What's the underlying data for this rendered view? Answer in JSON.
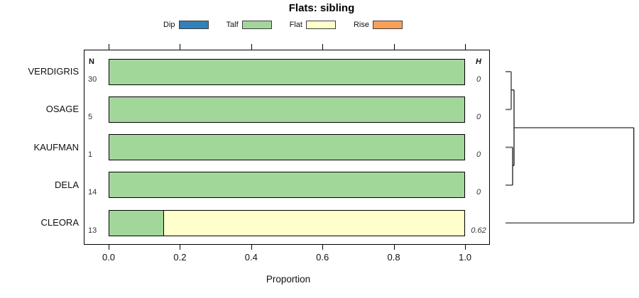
{
  "title": "Flats: sibling",
  "legend": {
    "items": [
      {
        "label": "Dip",
        "color": "#3181b8"
      },
      {
        "label": "Talf",
        "color": "#a2d79a"
      },
      {
        "label": "Flat",
        "color": "#feffca"
      },
      {
        "label": "Rise",
        "color": "#f9a057"
      }
    ]
  },
  "columns": {
    "n_header": "N",
    "h_header": "H"
  },
  "chart_data": {
    "type": "bar",
    "orientation": "horizontal",
    "stacked": true,
    "title": "Flats: sibling",
    "xlabel": "Proportion",
    "xlim": [
      0,
      1
    ],
    "xticks": [
      "0.0",
      "0.2",
      "0.4",
      "0.6",
      "0.8",
      "1.0"
    ],
    "grid": false,
    "categories": [
      "VERDIGRIS",
      "OSAGE",
      "KAUFMAN",
      "DELA",
      "CLEORA"
    ],
    "n_values": [
      "30",
      "5",
      "1",
      "14",
      "13"
    ],
    "h_values": [
      "0",
      "0",
      "0",
      "0",
      "0.62"
    ],
    "series": [
      {
        "name": "Dip",
        "color": "#3181b8",
        "values": [
          0,
          0,
          0,
          0,
          0
        ]
      },
      {
        "name": "Talf",
        "color": "#a2d79a",
        "values": [
          1,
          1,
          1,
          1,
          0.154
        ]
      },
      {
        "name": "Flat",
        "color": "#feffca",
        "values": [
          0,
          0,
          0,
          0,
          0.846
        ]
      },
      {
        "name": "Rise",
        "color": "#f9a057",
        "values": [
          0,
          0,
          0,
          0,
          0
        ]
      }
    ],
    "dendrogram": {
      "position": "right",
      "leaf_order": [
        "VERDIGRIS",
        "OSAGE",
        "KAUFMAN",
        "DELA",
        "CLEORA"
      ],
      "merges": [
        {
          "members": [
            "VERDIGRIS",
            "OSAGE"
          ],
          "height": 0
        },
        {
          "members": [
            "KAUFMAN",
            "DELA"
          ],
          "height": 0
        },
        {
          "members": [
            "VERDIGRIS+OSAGE",
            "KAUFMAN+DELA"
          ],
          "height": 0
        },
        {
          "members": [
            "VERDIGRIS+OSAGE+KAUFMAN+DELA",
            "CLEORA"
          ],
          "height": 0.62
        }
      ]
    }
  }
}
